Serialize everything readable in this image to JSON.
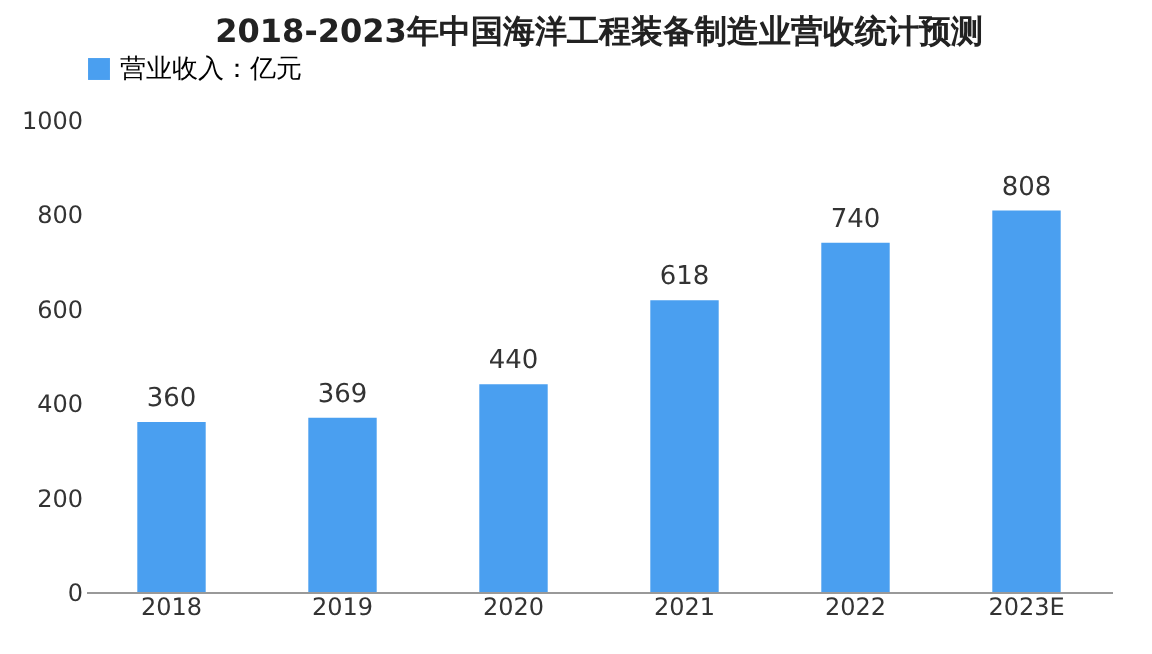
{
  "chart_data": {
    "type": "bar",
    "title": "2018-2023年中国海洋工程装备制造业营收统计预测",
    "categories": [
      "2018",
      "2019",
      "2020",
      "2021",
      "2022",
      "2023E"
    ],
    "series": [
      {
        "name": "营业收入：亿元",
        "color": "#4a9ff0",
        "values": [
          360,
          369,
          440,
          618,
          740,
          808
        ]
      }
    ],
    "ylim": [
      0,
      1000
    ],
    "yticks": [
      0,
      200,
      400,
      600,
      800,
      1000
    ],
    "data_labels": true,
    "legend": "top"
  }
}
